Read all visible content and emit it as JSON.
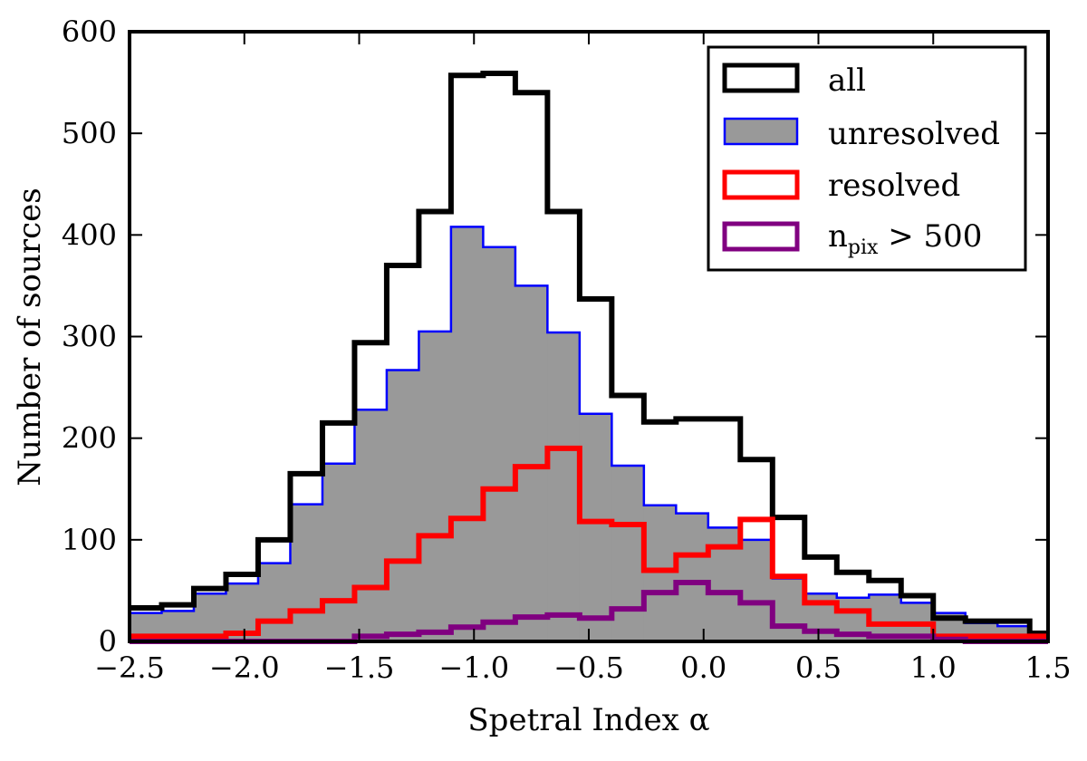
{
  "chart_data": {
    "type": "histogram",
    "xlabel": "Spetral Index α",
    "ylabel": "Number of sources",
    "xlim": [
      -2.5,
      1.5
    ],
    "ylim": [
      0,
      600
    ],
    "x_ticks": [
      -2.5,
      -2.0,
      -1.5,
      -1.0,
      -0.5,
      0.0,
      0.5,
      1.0,
      1.5
    ],
    "x_tick_labels": [
      "−2.5",
      "−2.0",
      "−1.5",
      "−1.0",
      "−0.5",
      "0.0",
      "0.5",
      "1.0",
      "1.5"
    ],
    "y_ticks": [
      0,
      100,
      200,
      300,
      400,
      500,
      600
    ],
    "y_tick_labels": [
      "0",
      "100",
      "200",
      "300",
      "400",
      "500",
      "600"
    ],
    "bin_edges": [
      -2.5,
      -2.36,
      -2.22,
      -2.08,
      -1.94,
      -1.8,
      -1.66,
      -1.52,
      -1.38,
      -1.24,
      -1.1,
      -0.96,
      -0.82,
      -0.68,
      -0.54,
      -0.4,
      -0.26,
      -0.12,
      0.02,
      0.16,
      0.3,
      0.44,
      0.58,
      0.72,
      0.86,
      1.0,
      1.14,
      1.28,
      1.42,
      1.5
    ],
    "series": [
      {
        "name": "unresolved",
        "style": "filled",
        "color": "#0000ff",
        "fill": "#999999",
        "values": [
          28,
          30,
          47,
          57,
          77,
          135,
          175,
          228,
          267,
          305,
          408,
          388,
          350,
          304,
          224,
          173,
          134,
          126,
          112,
          100,
          62,
          47,
          43,
          46,
          38,
          28,
          18,
          15,
          7
        ]
      },
      {
        "name": "all",
        "style": "step",
        "color": "#000000",
        "values": [
          33,
          36,
          52,
          66,
          100,
          165,
          215,
          294,
          370,
          423,
          557,
          559,
          540,
          423,
          337,
          242,
          216,
          219,
          219,
          179,
          122,
          83,
          68,
          60,
          45,
          23,
          20,
          20,
          8
        ]
      },
      {
        "name": "resolved",
        "style": "step",
        "color": "#ff0000",
        "values": [
          5,
          5,
          5,
          8,
          20,
          30,
          40,
          53,
          79,
          104,
          121,
          150,
          172,
          190,
          118,
          115,
          70,
          85,
          93,
          120,
          64,
          38,
          30,
          17,
          17,
          5,
          5,
          5,
          5
        ]
      },
      {
        "name": "n_pix > 500",
        "style": "step",
        "color": "#800080",
        "values": [
          0,
          0,
          0,
          0,
          0,
          0,
          0,
          5,
          7,
          9,
          14,
          19,
          24,
          26,
          23,
          32,
          48,
          58,
          48,
          38,
          15,
          10,
          7,
          5,
          5,
          2,
          0,
          0,
          0
        ]
      }
    ],
    "legend": {
      "position": "top-right",
      "entries": [
        {
          "label": "all",
          "series": "all"
        },
        {
          "label": "unresolved",
          "series": "unresolved"
        },
        {
          "label": "resolved",
          "series": "resolved"
        },
        {
          "label_main": "n",
          "label_sub": "pix",
          "label_rest": " > 500",
          "series": "n_pix > 500"
        }
      ]
    }
  }
}
